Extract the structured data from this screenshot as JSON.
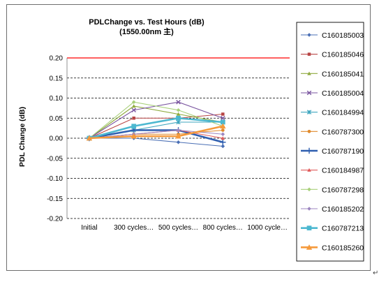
{
  "chart_data": {
    "type": "line",
    "title": "PDLChange vs.  Test Hours (dB)",
    "subtitle": "(1550.00nm 主)",
    "xlabel": "",
    "ylabel": "PDL Change (dB)",
    "categories": [
      "Initial",
      "300 cycles…",
      "500 cycles…",
      "800 cycles…",
      "1000 cycle…"
    ],
    "ylim": [
      -0.2,
      0.2
    ],
    "yticks": [
      "0.20",
      "0.15",
      "0.10",
      "0.05",
      "0.00",
      "-0.05",
      "-0.10",
      "-0.15",
      "-0.20"
    ],
    "grid": "horizontal dashed",
    "reference_line": {
      "y": 0.2,
      "color": "#ff0000"
    },
    "legend_position": "right",
    "series": [
      {
        "name": "C160185003",
        "color": "#4a6fb5",
        "marker": "diamond",
        "values": [
          0.0,
          0.0,
          -0.01,
          -0.02,
          null
        ]
      },
      {
        "name": "C160185046",
        "color": "#b84545",
        "marker": "square",
        "values": [
          0.0,
          0.05,
          0.05,
          0.06,
          null
        ]
      },
      {
        "name": "C160185041",
        "color": "#8faa3e",
        "marker": "triangle",
        "values": [
          0.0,
          0.08,
          0.06,
          0.04,
          null
        ]
      },
      {
        "name": "C160185004",
        "color": "#7a55a0",
        "marker": "x",
        "values": [
          0.0,
          0.07,
          0.09,
          0.05,
          null
        ]
      },
      {
        "name": "C160184994",
        "color": "#3fa6bf",
        "marker": "star",
        "values": [
          0.0,
          0.02,
          0.04,
          0.04,
          null
        ]
      },
      {
        "name": "C160787300",
        "color": "#e08a2c",
        "marker": "circle",
        "values": [
          0.0,
          0.01,
          0.01,
          0.02,
          null
        ]
      },
      {
        "name": "C160787190",
        "color": "#2f5fb0",
        "marker": "plus",
        "values": [
          0.0,
          0.02,
          0.02,
          -0.01,
          null
        ]
      },
      {
        "name": "C160184987",
        "color": "#e05a5a",
        "marker": "triangle",
        "values": [
          0.0,
          0.01,
          0.02,
          0.0,
          null
        ]
      },
      {
        "name": "C160787298",
        "color": "#a8d07a",
        "marker": "diamond",
        "values": [
          0.0,
          0.09,
          0.07,
          0.03,
          null
        ]
      },
      {
        "name": "C160185202",
        "color": "#9c86c0",
        "marker": "diamond",
        "values": [
          0.0,
          0.01,
          0.02,
          0.01,
          null
        ]
      },
      {
        "name": "C160787213",
        "color": "#4cb8d0",
        "marker": "square",
        "values": [
          0.0,
          0.03,
          0.05,
          0.04,
          null
        ]
      },
      {
        "name": "C160185260",
        "color": "#f59a3c",
        "marker": "triangle",
        "values": [
          0.0,
          0.005,
          0.005,
          0.03,
          null
        ]
      }
    ]
  }
}
